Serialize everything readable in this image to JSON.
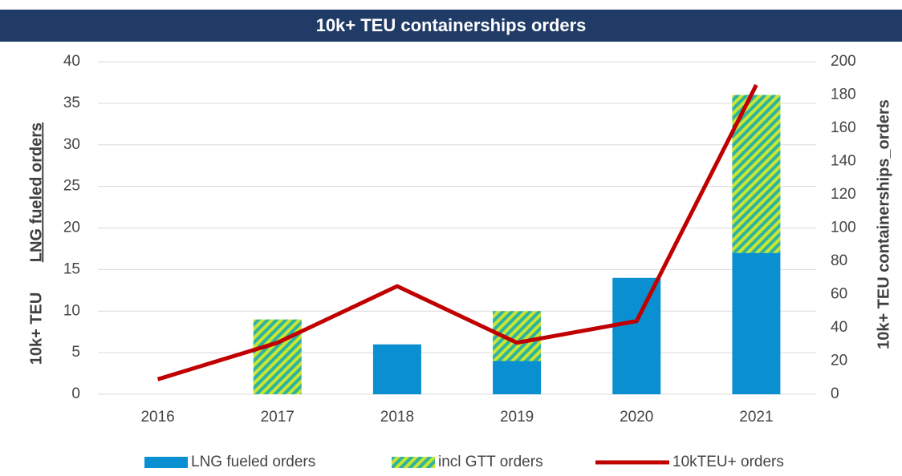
{
  "chart_data": {
    "type": "bar_line",
    "title": "10k+ TEU containerships orders",
    "y_label": [
      "10k+ TEU",
      "LNG fueled orders"
    ],
    "y2_label": "10k+ TEU containerships_orders",
    "categories": [
      "2016",
      "2017",
      "2018",
      "2019",
      "2020",
      "2021"
    ],
    "series": [
      {
        "name": "LNG fueled orders",
        "type": "bar",
        "color": "#0a8fd0",
        "values": [
          0,
          0,
          6,
          4,
          14,
          17
        ]
      },
      {
        "name": "incl GTT orders",
        "type": "bar",
        "color": "#2db3a0",
        "hatch_color": "#c8e632",
        "values": [
          0,
          9,
          0,
          6,
          0,
          19
        ]
      },
      {
        "name": "10kTEU+ orders",
        "type": "line",
        "axis": "y2",
        "color": "#c00000",
        "values": [
          9,
          31,
          65,
          31,
          44,
          186
        ]
      }
    ],
    "ylim": [
      0,
      40
    ],
    "yticks": [
      0,
      5,
      10,
      15,
      20,
      25,
      30,
      35,
      40
    ],
    "y2lim": [
      0,
      200
    ],
    "y2ticks": [
      0,
      20,
      40,
      60,
      80,
      100,
      120,
      140,
      160,
      180,
      200
    ],
    "grid": true,
    "legend": "bottom"
  }
}
